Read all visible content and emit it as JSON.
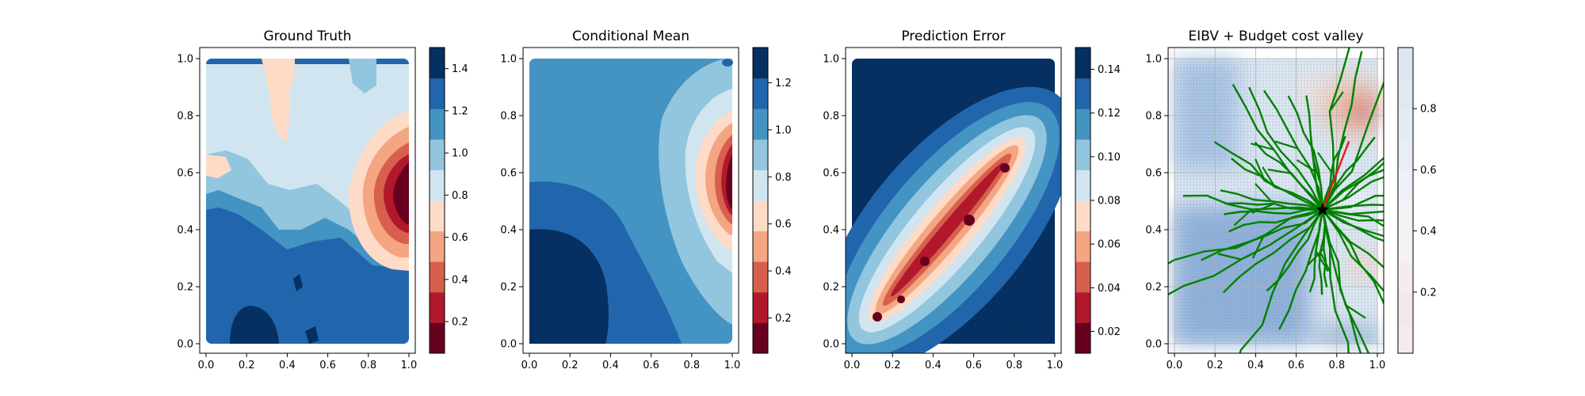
{
  "chart_data": [
    {
      "type": "contour",
      "title": "Ground Truth",
      "xlim": [
        0.0,
        1.0
      ],
      "ylim": [
        0.0,
        1.0
      ],
      "x_ticks": [
        "0.0",
        "0.2",
        "0.4",
        "0.6",
        "0.8",
        "1.0"
      ],
      "y_ticks": [
        "0.0",
        "0.2",
        "0.4",
        "0.6",
        "0.8",
        "1.0"
      ],
      "colormap": "RdBu",
      "colorbar_ticks": [
        "0.2",
        "0.4",
        "0.6",
        "0.8",
        "1.0",
        "1.2",
        "1.4"
      ],
      "colorbar_range": [
        0.05,
        1.5
      ],
      "levels": 10
    },
    {
      "type": "contour",
      "title": "Conditional Mean",
      "xlim": [
        0.0,
        1.0
      ],
      "ylim": [
        0.0,
        1.0
      ],
      "x_ticks": [
        "0.0",
        "0.2",
        "0.4",
        "0.6",
        "0.8",
        "1.0"
      ],
      "y_ticks": [
        "0.0",
        "0.2",
        "0.4",
        "0.6",
        "0.8",
        "1.0"
      ],
      "colormap": "RdBu",
      "colorbar_ticks": [
        "0.2",
        "0.4",
        "0.6",
        "0.8",
        "1.0",
        "1.2"
      ],
      "colorbar_range": [
        0.05,
        1.35
      ],
      "levels": 10
    },
    {
      "type": "contour",
      "title": "Prediction Error",
      "xlim": [
        0.0,
        1.0
      ],
      "ylim": [
        0.0,
        1.0
      ],
      "x_ticks": [
        "0.0",
        "0.2",
        "0.4",
        "0.6",
        "0.8",
        "1.0"
      ],
      "y_ticks": [
        "0.0",
        "0.2",
        "0.4",
        "0.6",
        "0.8",
        "1.0"
      ],
      "colormap": "RdBu",
      "colorbar_ticks": [
        "0.02",
        "0.04",
        "0.06",
        "0.08",
        "0.10",
        "0.12",
        "0.14"
      ],
      "colorbar_range": [
        0.01,
        0.15
      ],
      "levels": 10
    },
    {
      "type": "scatter",
      "title": "EIBV + Budget cost valley",
      "xlim": [
        0.0,
        1.0
      ],
      "ylim": [
        0.0,
        1.0
      ],
      "x_ticks": [
        "0.0",
        "0.2",
        "0.4",
        "0.6",
        "0.8",
        "1.0"
      ],
      "y_ticks": [
        "0.0",
        "0.2",
        "0.4",
        "0.6",
        "0.8",
        "1.0"
      ],
      "grid": true,
      "colormap": "RdBu",
      "colorbar_ticks": [
        "0.2",
        "0.4",
        "0.6",
        "0.8"
      ],
      "colorbar_range": [
        0.0,
        1.0
      ],
      "current_location": {
        "x": 0.73,
        "y": 0.47
      },
      "next_waypoint": {
        "x": 0.86,
        "y": 0.71
      },
      "path_color": "#008000",
      "selected_path_color": "#e31a1c"
    }
  ]
}
